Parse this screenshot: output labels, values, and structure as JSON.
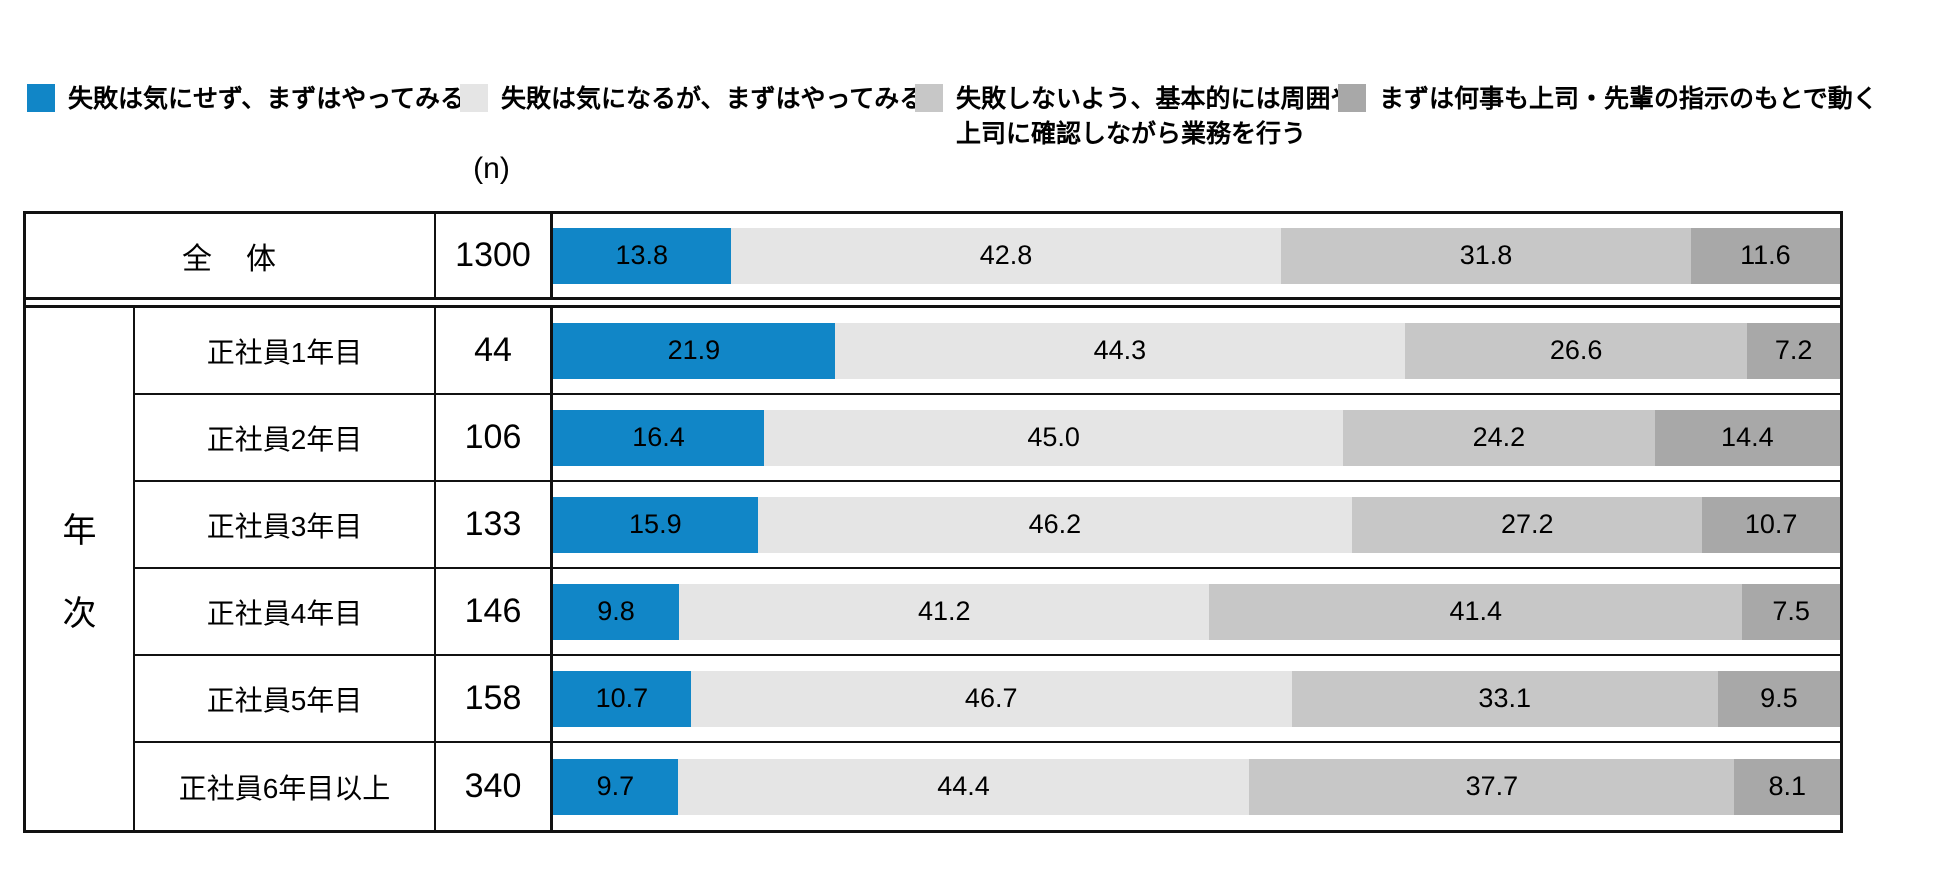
{
  "legend": {
    "items": [
      {
        "label": "失敗は気にせず、まずはやってみる",
        "color": "#1186c7"
      },
      {
        "label": "失敗は気になるが、まずはやってみる",
        "color": "#e5e5e5"
      },
      {
        "label": "失敗しないよう、基本的には周囲や\n上司に確認しながら業務を行う",
        "color": "#c7c7c7"
      },
      {
        "label": "まずは何事も上司・先輩の指示のもとで動く",
        "color": "#a8a8a8"
      }
    ]
  },
  "table": {
    "n_header": "(n)",
    "group_label": "年次",
    "segment_colors": [
      "#1186c7",
      "#e5e5e5",
      "#c7c7c7",
      "#a8a8a8"
    ],
    "total_row": {
      "label": "全　体",
      "n": "1300",
      "values": [
        "13.8",
        "42.8",
        "31.8",
        "11.6"
      ]
    },
    "rows": [
      {
        "label": "正社員1年目",
        "n": "44",
        "values": [
          "21.9",
          "44.3",
          "26.6",
          "7.2"
        ]
      },
      {
        "label": "正社員2年目",
        "n": "106",
        "values": [
          "16.4",
          "45.0",
          "24.2",
          "14.4"
        ]
      },
      {
        "label": "正社員3年目",
        "n": "133",
        "values": [
          "15.9",
          "46.2",
          "27.2",
          "10.7"
        ]
      },
      {
        "label": "正社員4年目",
        "n": "146",
        "values": [
          "9.8",
          "41.2",
          "41.4",
          "7.5"
        ]
      },
      {
        "label": "正社員5年目",
        "n": "158",
        "values": [
          "10.7",
          "46.7",
          "33.1",
          "9.5"
        ]
      },
      {
        "label": "正社員6年目以上",
        "n": "340",
        "values": [
          "9.7",
          "44.4",
          "37.7",
          "8.1"
        ]
      }
    ]
  },
  "chart_data": {
    "type": "bar",
    "orientation": "horizontal",
    "stacked": true,
    "unit": "%",
    "xlim": [
      0,
      100
    ],
    "legend_position": "top",
    "group_label": "年次",
    "categories": [
      "全体",
      "正社員1年目",
      "正社員2年目",
      "正社員3年目",
      "正社員4年目",
      "正社員5年目",
      "正社員6年目以上"
    ],
    "n_values": [
      1300,
      44,
      106,
      133,
      146,
      158,
      340
    ],
    "series": [
      {
        "name": "失敗は気にせず、まずはやってみる",
        "color": "#1186c7",
        "values": [
          13.8,
          21.9,
          16.4,
          15.9,
          9.8,
          10.7,
          9.7
        ]
      },
      {
        "name": "失敗は気になるが、まずはやってみる",
        "color": "#e5e5e5",
        "values": [
          42.8,
          44.3,
          45.0,
          46.2,
          41.2,
          46.7,
          44.4
        ]
      },
      {
        "name": "失敗しないよう、基本的には周囲や上司に確認しながら業務を行う",
        "color": "#c7c7c7",
        "values": [
          31.8,
          26.6,
          24.2,
          27.2,
          41.4,
          33.1,
          37.7
        ]
      },
      {
        "name": "まずは何事も上司・先輩の指示のもとで動く",
        "color": "#a8a8a8",
        "values": [
          11.6,
          7.2,
          14.4,
          10.7,
          7.5,
          9.5,
          8.1
        ]
      }
    ]
  }
}
